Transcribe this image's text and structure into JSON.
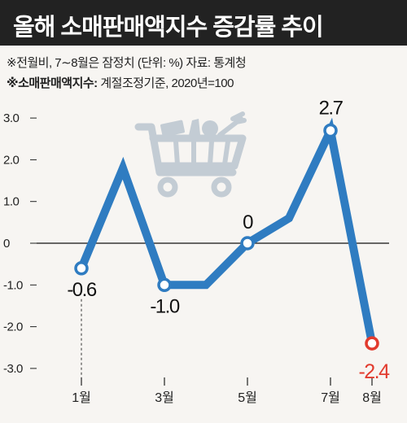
{
  "header": {
    "title": "올해 소매판매액지수 증감률 추이"
  },
  "notes": {
    "line1": "※전월비, 7∼8월은 잠정치 (단위: %) 자료: 통계청",
    "line2_bold": "※소매판매액지수:",
    "line2_rest": " 계절조정기준, 2020년=100"
  },
  "colors": {
    "line": "#2f7cc1",
    "negative_highlight": "#e23b2e",
    "title_bg": "#222222",
    "icon": "#c3ccd4"
  },
  "chart_data": {
    "type": "line",
    "title": "올해 소매판매액지수 증감률 추이",
    "ylabel": "",
    "xlabel": "",
    "ylim": [
      -3.0,
      3.0
    ],
    "yticks": [
      3.0,
      2.0,
      1.0,
      0,
      -1.0,
      -2.0,
      -3.0
    ],
    "ytick_labels": [
      "3.0",
      "2.0",
      "1.0",
      "0",
      "-1.0",
      "-2.0",
      "-3.0"
    ],
    "x": [
      1,
      2,
      3,
      4,
      5,
      6,
      7,
      8
    ],
    "xtick_positions": [
      1,
      3,
      5,
      7,
      8
    ],
    "xtick_labels": [
      "1월",
      "3월",
      "5월",
      "7월",
      "8월"
    ],
    "series": [
      {
        "values": [
          -0.6,
          1.8,
          -1.0,
          -1.0,
          0,
          0.6,
          2.7,
          -2.4
        ]
      }
    ],
    "data_labels": [
      {
        "month": 1,
        "value": -0.6,
        "text": "-0.6"
      },
      {
        "month": 3,
        "value": -1.0,
        "text": "-1.0"
      },
      {
        "month": 5,
        "value": 0,
        "text": "0"
      },
      {
        "month": 7,
        "value": 2.7,
        "text": "2.7"
      },
      {
        "month": 8,
        "value": -2.4,
        "text": "-2.4"
      }
    ],
    "highlight_month": 8,
    "grid": false,
    "legend": "none"
  }
}
